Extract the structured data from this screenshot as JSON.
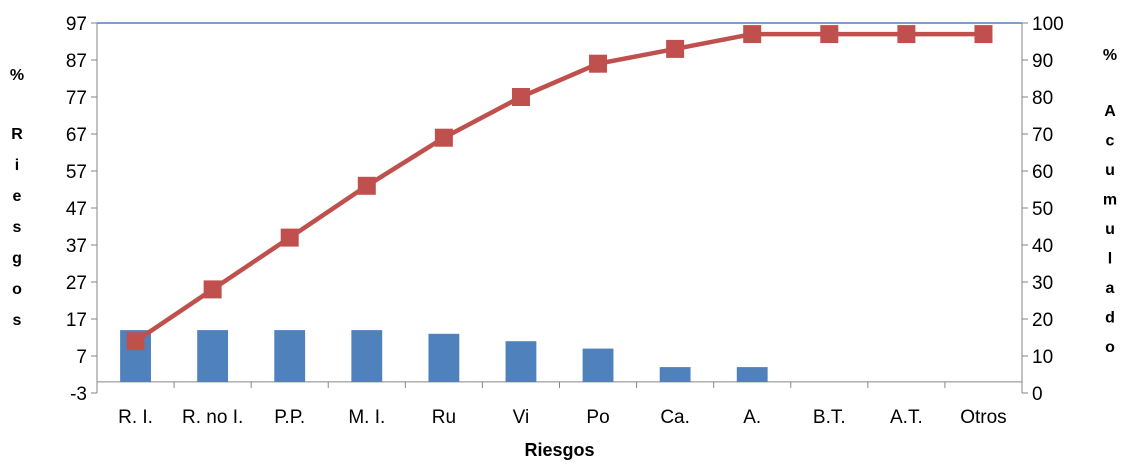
{
  "chart_data": {
    "type": "bar",
    "categories": [
      "R. I.",
      "R. no I.",
      "P.P.",
      "M. I.",
      "Ru",
      "Vi",
      "Po",
      "Ca.",
      "A.",
      "B.T.",
      "A.T.",
      "Otros"
    ],
    "series": [
      {
        "type": "bar",
        "axis": "left",
        "color": "#4F81BD",
        "values": [
          14,
          14,
          14,
          14,
          13,
          11,
          9,
          4,
          4,
          0,
          0,
          0
        ]
      },
      {
        "type": "line",
        "axis": "right",
        "color": "#C0504D",
        "marker": "square",
        "values": [
          14,
          28,
          42,
          56,
          69,
          80,
          89,
          93,
          97,
          97,
          97,
          97
        ]
      }
    ],
    "xlabel": "Riesgos",
    "ylabel_left": "% Riesgos",
    "ylabel_right": "% Acumulado",
    "y_left": {
      "min": -3,
      "max": 97,
      "ticks": [
        -3,
        7,
        17,
        27,
        37,
        47,
        57,
        67,
        77,
        87,
        97
      ]
    },
    "y_right": {
      "min": 0,
      "max": 100,
      "ticks": [
        0,
        10,
        20,
        30,
        40,
        50,
        60,
        70,
        80,
        90,
        100
      ]
    },
    "grid": false,
    "legend": "none"
  }
}
